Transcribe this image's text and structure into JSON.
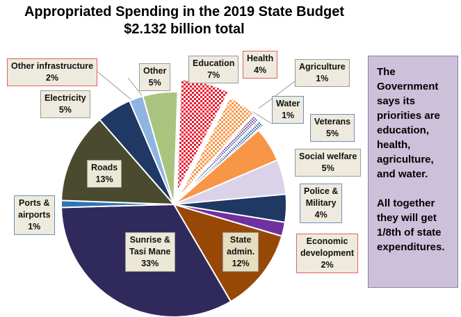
{
  "chart_data": {
    "type": "pie",
    "title": "Appropriated Spending in the 2019 State Budget",
    "subtitle": "$2.132 billion total",
    "slices": [
      {
        "key": "education",
        "label": "Education",
        "value_label": "7%",
        "value": 7,
        "color": "#e8172e",
        "pattern": "check-red"
      },
      {
        "key": "health",
        "label": "Health",
        "value_label": "4%",
        "value": 4,
        "color": "#f79646",
        "pattern": "check-orange"
      },
      {
        "key": "agriculture",
        "label": "Agriculture",
        "value_label": "1%",
        "value": 1,
        "color": "#8064a2",
        "pattern": "check-purple"
      },
      {
        "key": "water",
        "label": "Water",
        "value_label": "1%",
        "value": 1,
        "color": "#4f81bd",
        "pattern": "check-blue"
      },
      {
        "key": "veterans",
        "label": "Veterans",
        "value_label": "5%",
        "value": 5,
        "color": "#f79646"
      },
      {
        "key": "social_welfare",
        "label": "Social welfare",
        "value_label": "5%",
        "value": 5,
        "color": "#d9d2e9"
      },
      {
        "key": "police_military",
        "label": "Police & Military",
        "value_label": "4%",
        "value": 4,
        "color": "#1f3864"
      },
      {
        "key": "economic_development",
        "label": "Economic development",
        "value_label": "2%",
        "value": 2,
        "color": "#7030a0"
      },
      {
        "key": "state_admin",
        "label": "State admin.",
        "value_label": "12%",
        "value": 12,
        "color": "#974806"
      },
      {
        "key": "sunrise_tasi_mane",
        "label": "Sunrise & Tasi Mane",
        "value_label": "33%",
        "value": 33,
        "color": "#302a5c"
      },
      {
        "key": "ports_airports",
        "label": "Ports & airports",
        "value_label": "1%",
        "value": 1,
        "color": "#2e75b6"
      },
      {
        "key": "roads",
        "label": "Roads",
        "value_label": "13%",
        "value": 13,
        "color": "#4a4a2e"
      },
      {
        "key": "electricity",
        "label": "Electricity",
        "value_label": "5%",
        "value": 5,
        "color": "#1f3864"
      },
      {
        "key": "other_infrastructure",
        "label": "Other infrastructure",
        "value_label": "2%",
        "value": 2,
        "color": "#8eb4e3"
      },
      {
        "key": "other",
        "label": "Other",
        "value_label": "5%",
        "value": 5,
        "color": "#a9c47f"
      }
    ]
  },
  "labels": {
    "education": [
      "Education",
      "7%"
    ],
    "health": [
      "Health",
      "4%"
    ],
    "agriculture": [
      "Agriculture",
      "1%"
    ],
    "water": [
      "Water",
      "1%"
    ],
    "veterans": [
      "Veterans",
      "5%"
    ],
    "social_welfare": [
      "Social welfare",
      "5%"
    ],
    "police_military": [
      "Police &",
      "Military",
      "4%"
    ],
    "economic_development": [
      "Economic",
      "development",
      "2%"
    ],
    "state_admin": [
      "State",
      "admin.",
      "12%"
    ],
    "sunrise_tasi_mane": [
      "Sunrise &",
      "Tasi Mane",
      "33%"
    ],
    "ports_airports": [
      "Ports &",
      "airports",
      "1%"
    ],
    "roads": [
      "Roads",
      "13%"
    ],
    "electricity": [
      "Electricity",
      "5%"
    ],
    "other_infrastructure": [
      "Other infrastructure",
      "2%"
    ],
    "other": [
      "Other",
      "5%"
    ]
  },
  "note": {
    "paragraph1": "The Government says its priorities are education, health, agriculture, and water.",
    "paragraph2": "All together they will get 1/8th of state expenditures."
  }
}
